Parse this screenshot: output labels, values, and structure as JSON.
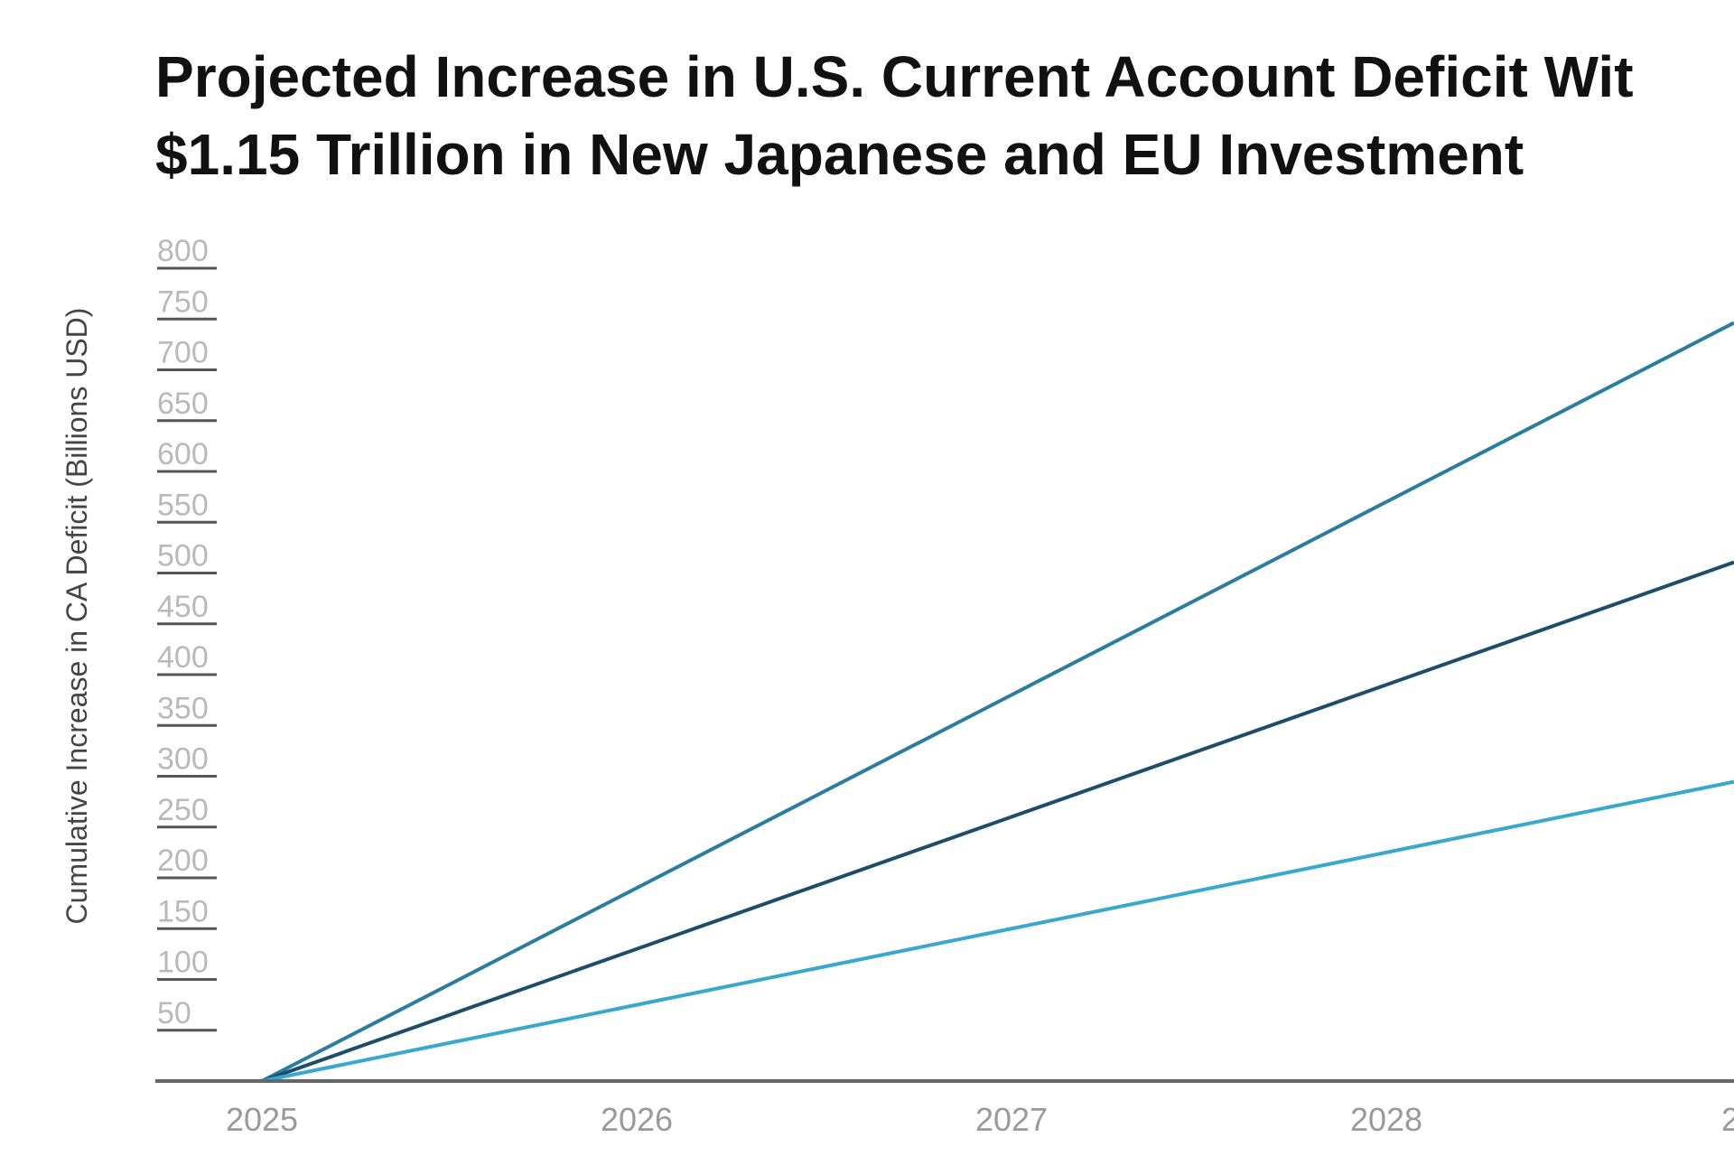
{
  "chart_data": {
    "type": "line",
    "title_lines": [
      "Projected Increase in U.S. Current Account Deficit Wit",
      "$1.15 Trillion in New Japanese and EU Investment"
    ],
    "xlabel": "",
    "ylabel": "Cumulative Increase in CA Deficit (Billions USD)",
    "x": [
      2025,
      2026,
      2027,
      2028
    ],
    "x_tick_labels": [
      "2025",
      "2026",
      "2027",
      "2028",
      "2"
    ],
    "y_ticks": [
      50,
      100,
      150,
      200,
      250,
      300,
      350,
      400,
      450,
      500,
      550,
      600,
      650,
      700,
      750,
      800
    ],
    "ylim": [
      0,
      800
    ],
    "grid": false,
    "legend": "none",
    "series": [
      {
        "values": [
          0,
          190,
          380,
          570
        ],
        "color": "#2a7d9e"
      },
      {
        "values": [
          0,
          130,
          260,
          390
        ],
        "color": "#1e4d6a"
      },
      {
        "values": [
          0,
          75,
          150,
          225
        ],
        "color": "#3aa7cc"
      }
    ]
  }
}
